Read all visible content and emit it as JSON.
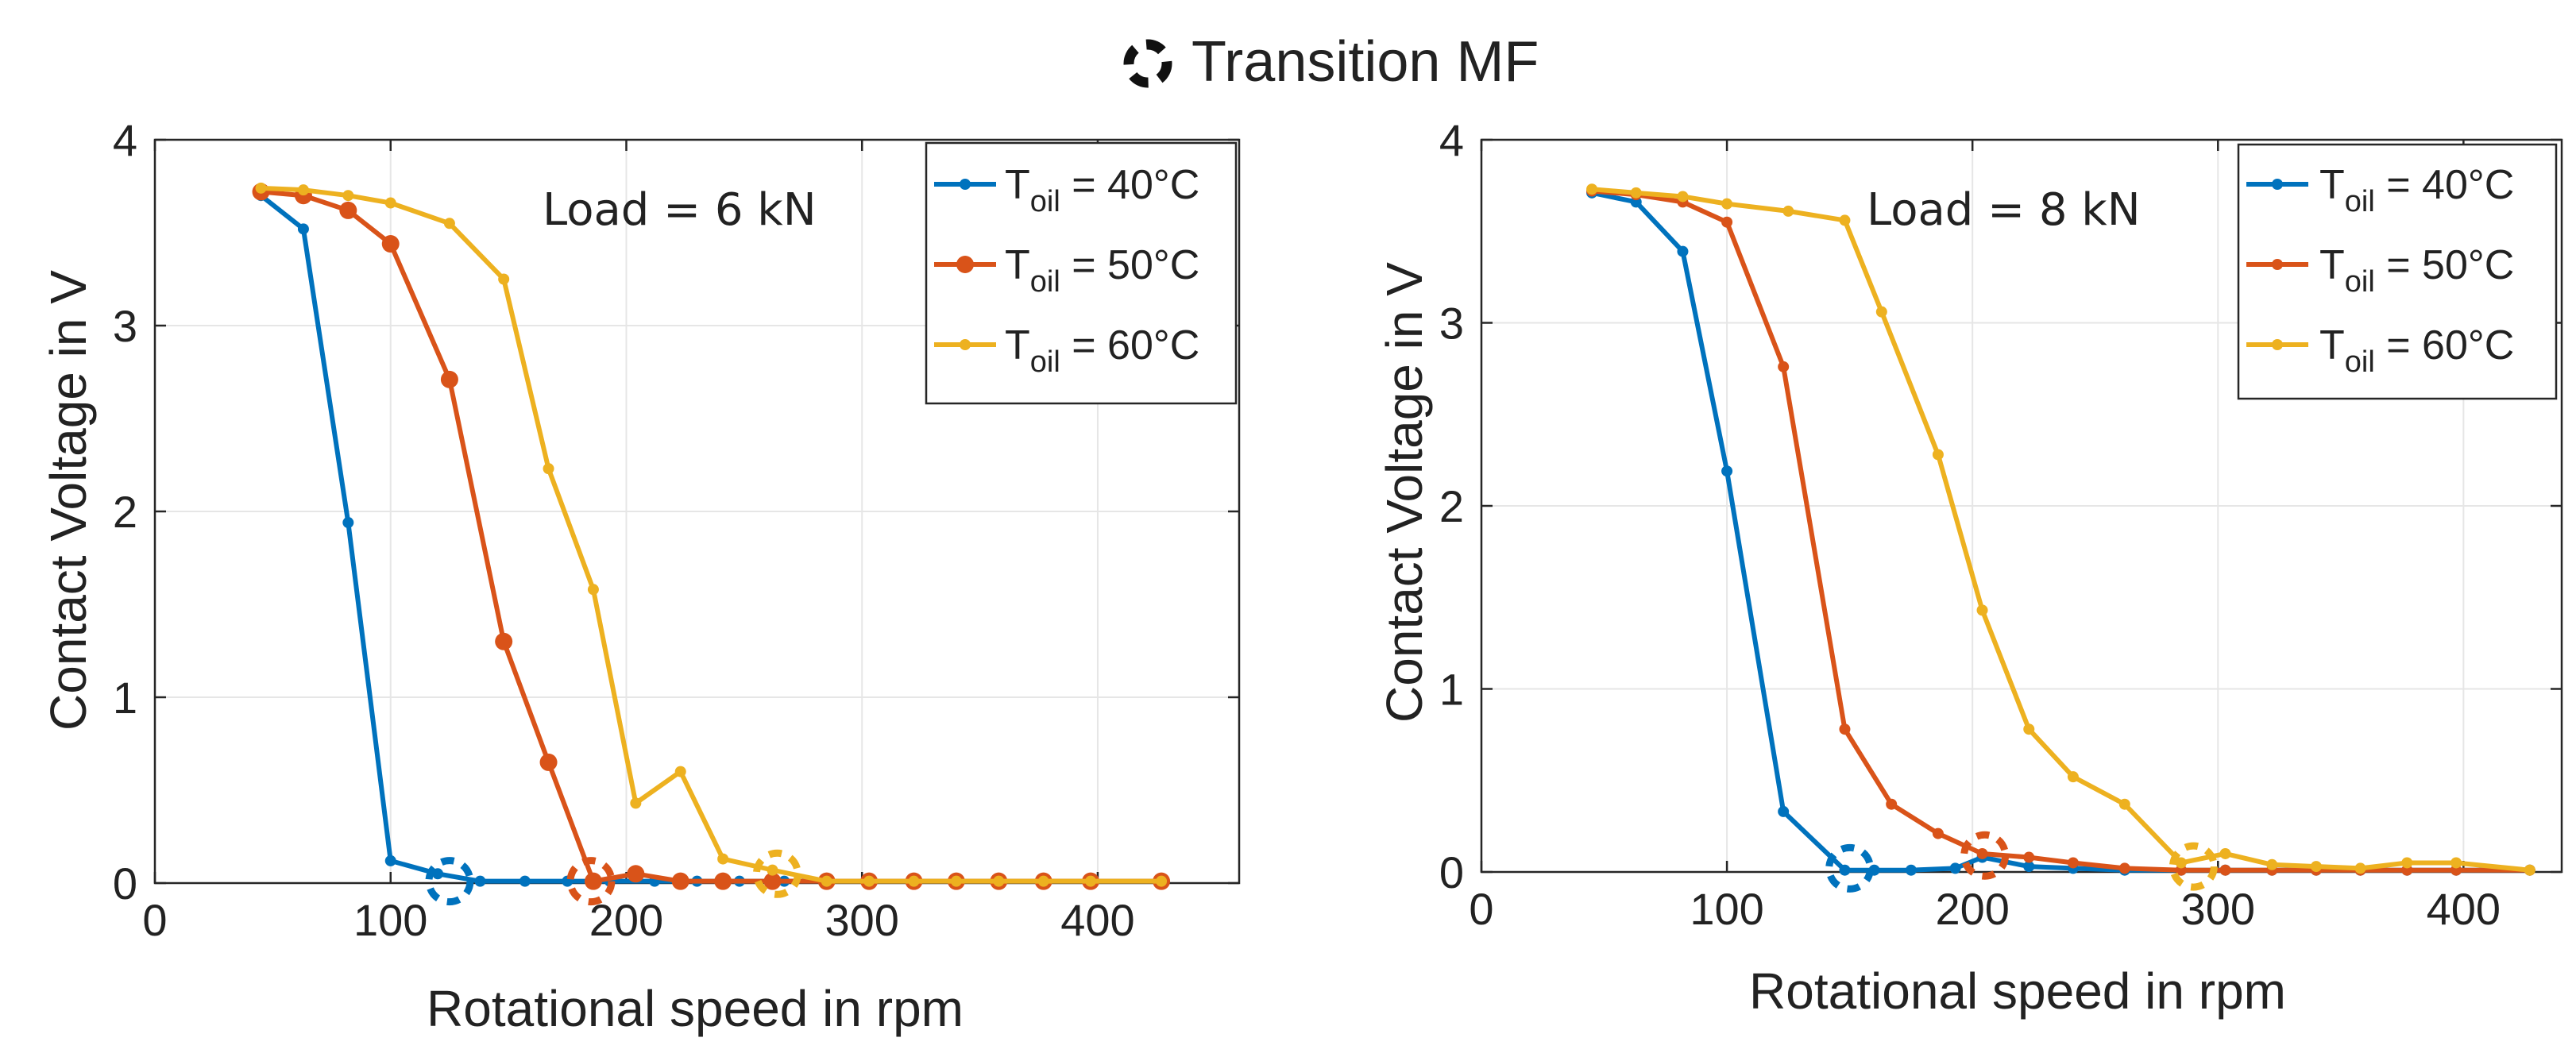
{
  "figure_title": "Transition MF",
  "figure_title_icon": "dashed-circle-icon",
  "series_colors": {
    "T_oil_40": "#0072BD",
    "T_oil_50": "#D95319",
    "T_oil_60": "#EDB120"
  },
  "chart_data": [
    {
      "type": "line",
      "annotation": "Load = 6 kN",
      "xlabel": "Rotational speed in rpm",
      "ylabel": "Contact Voltage in V",
      "xlim": [
        0,
        460
      ],
      "ylim": [
        0,
        4
      ],
      "xticks": [
        "0",
        "100",
        "200",
        "300",
        "400"
      ],
      "yticks": [
        "0",
        "1",
        "2",
        "3",
        "4"
      ],
      "grid": true,
      "legend_position": "top-right",
      "series": [
        {
          "name": "T_oil = 40°C",
          "legend_main": "T",
          "legend_sub": "oil",
          "legend_rest": " = 40°C",
          "color": "#0072BD",
          "marker": "small-dot",
          "x": [
            45,
            63,
            82,
            100,
            120,
            138,
            157,
            175,
            193,
            212,
            230,
            248,
            267,
            285,
            303,
            322,
            340,
            358,
            377,
            397,
            427
          ],
          "y": [
            3.7,
            3.52,
            1.94,
            0.12,
            0.05,
            0.01,
            0.01,
            0.01,
            0.01,
            0.01,
            0.01,
            0.01,
            0.01,
            0.01,
            0.01,
            0.01,
            0.01,
            0.01,
            0.01,
            0.01,
            0.01
          ]
        },
        {
          "name": "T_oil = 50°C",
          "legend_main": "T",
          "legend_sub": "oil",
          "legend_rest": " = 50°C",
          "color": "#D95319",
          "marker": "large-dot",
          "x": [
            45,
            63,
            82,
            100,
            125,
            148,
            167,
            186,
            204,
            223,
            241,
            262,
            285,
            303,
            322,
            340,
            358,
            377,
            397,
            427
          ],
          "y": [
            3.72,
            3.7,
            3.62,
            3.44,
            2.71,
            1.3,
            0.65,
            0.01,
            0.05,
            0.01,
            0.01,
            0.01,
            0.01,
            0.01,
            0.01,
            0.01,
            0.01,
            0.01,
            0.01,
            0.01
          ]
        },
        {
          "name": "T_oil = 60°C",
          "legend_main": "T",
          "legend_sub": "oil",
          "legend_rest": " = 60°C",
          "color": "#EDB120",
          "marker": "small-dot",
          "x": [
            45,
            63,
            82,
            100,
            125,
            148,
            167,
            186,
            204,
            223,
            241,
            262,
            285,
            303,
            322,
            340,
            358,
            377,
            397,
            427
          ],
          "y": [
            3.74,
            3.73,
            3.7,
            3.66,
            3.55,
            3.25,
            2.23,
            1.58,
            0.43,
            0.6,
            0.13,
            0.07,
            0.01,
            0.01,
            0.01,
            0.01,
            0.01,
            0.01,
            0.01,
            0.01
          ]
        }
      ],
      "transition_points": [
        {
          "series": "T_oil = 40°C",
          "x": 125,
          "y": 0.01,
          "color": "#0072BD"
        },
        {
          "series": "T_oil = 50°C",
          "x": 185,
          "y": 0.01,
          "color": "#D95319"
        },
        {
          "series": "T_oil = 60°C",
          "x": 264,
          "y": 0.05,
          "color": "#EDB120"
        }
      ]
    },
    {
      "type": "line",
      "annotation": "Load = 8 kN",
      "xlabel": "Rotational speed in rpm",
      "ylabel": "Contact Voltage in V",
      "xlim": [
        0,
        440
      ],
      "ylim": [
        0,
        4
      ],
      "xticks": [
        "0",
        "100",
        "200",
        "300",
        "400"
      ],
      "yticks": [
        "0",
        "1",
        "2",
        "3",
        "4"
      ],
      "grid": true,
      "legend_position": "top-right",
      "series": [
        {
          "name": "T_oil = 40°C",
          "legend_main": "T",
          "legend_sub": "oil",
          "legend_rest": " = 40°C",
          "color": "#0072BD",
          "marker": "small-dot",
          "x": [
            45,
            63,
            82,
            100,
            123,
            148,
            160,
            175,
            193,
            204,
            223,
            241,
            262,
            285,
            303,
            322,
            340,
            358,
            377,
            397,
            427
          ],
          "y": [
            3.71,
            3.66,
            3.39,
            2.19,
            0.33,
            0.01,
            0.01,
            0.01,
            0.02,
            0.08,
            0.03,
            0.02,
            0.01,
            0.01,
            0.01,
            0.01,
            0.01,
            0.01,
            0.01,
            0.01,
            0.01
          ]
        },
        {
          "name": "T_oil = 50°C",
          "legend_main": "T",
          "legend_sub": "oil",
          "legend_rest": " = 50°C",
          "color": "#D95319",
          "marker": "small-dot",
          "x": [
            45,
            63,
            82,
            100,
            123,
            148,
            167,
            186,
            204,
            223,
            241,
            262,
            285,
            303,
            322,
            340,
            358,
            377,
            397,
            427
          ],
          "y": [
            3.72,
            3.7,
            3.66,
            3.55,
            2.76,
            0.78,
            0.37,
            0.21,
            0.1,
            0.08,
            0.05,
            0.02,
            0.01,
            0.01,
            0.01,
            0.01,
            0.01,
            0.01,
            0.01,
            0.01
          ]
        },
        {
          "name": "T_oil = 60°C",
          "legend_main": "T",
          "legend_sub": "oil",
          "legend_rest": " = 60°C",
          "color": "#EDB120",
          "marker": "small-dot",
          "x": [
            45,
            63,
            82,
            100,
            125,
            148,
            163,
            186,
            204,
            223,
            241,
            262,
            285,
            303,
            322,
            340,
            358,
            377,
            397,
            427
          ],
          "y": [
            3.73,
            3.71,
            3.69,
            3.65,
            3.61,
            3.56,
            3.06,
            2.28,
            1.43,
            0.78,
            0.52,
            0.37,
            0.05,
            0.1,
            0.04,
            0.03,
            0.02,
            0.05,
            0.05,
            0.01
          ]
        }
      ],
      "transition_points": [
        {
          "series": "T_oil = 40°C",
          "x": 150,
          "y": 0.02,
          "color": "#0072BD"
        },
        {
          "series": "T_oil = 50°C",
          "x": 205,
          "y": 0.09,
          "color": "#D95319"
        },
        {
          "series": "T_oil = 60°C",
          "x": 290,
          "y": 0.03,
          "color": "#EDB120"
        }
      ]
    }
  ]
}
